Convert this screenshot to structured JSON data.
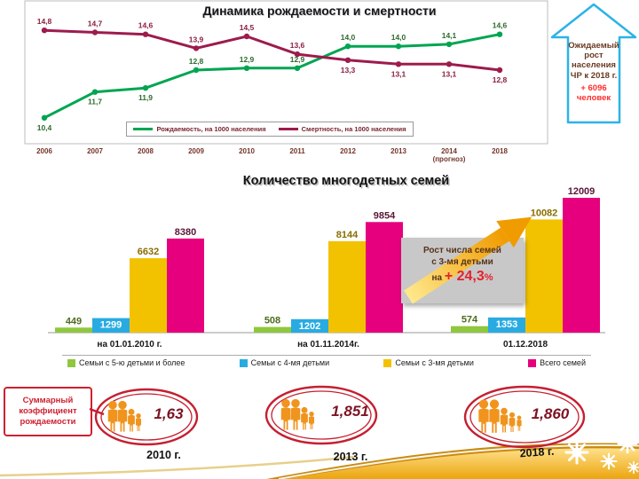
{
  "chart_data": [
    {
      "type": "line",
      "title": "Динамика рождаемости и смертности",
      "x_labels": [
        "2006",
        "2007",
        "2008",
        "2009",
        "2010",
        "2011",
        "2012",
        "2013",
        "2014",
        "2018"
      ],
      "x_sublabels": [
        "",
        "",
        "",
        "",
        "",
        "",
        "",
        "",
        "(прогноз)",
        ""
      ],
      "ylim": [
        10,
        15.5
      ],
      "legend_position": "bottom",
      "series": [
        {
          "name": "Рождаемость, на 1000 населения",
          "color": "#00a551",
          "label_color": "#2e6b2e",
          "values": [
            10.4,
            11.7,
            11.9,
            12.8,
            12.9,
            12.9,
            14.0,
            14.0,
            14.1,
            14.6
          ],
          "labels": [
            "10,4",
            "11,7",
            "11,9",
            "12,8",
            "12,9",
            "12,9",
            "14,0",
            "14,0",
            "14,1",
            "14,6"
          ]
        },
        {
          "name": "Смертность, на 1000 населения",
          "color": "#9d1b4d",
          "label_color": "#8b1f3f",
          "values": [
            14.8,
            14.7,
            14.6,
            13.9,
            14.5,
            13.6,
            13.3,
            13.1,
            13.1,
            12.8
          ],
          "labels": [
            "14,8",
            "14,7",
            "14,6",
            "13,9",
            "14,5",
            "13,6",
            "13,3",
            "13,1",
            "13,1",
            "12,8"
          ]
        }
      ]
    },
    {
      "type": "bar",
      "title": "Количество многодетных семей",
      "categories": [
        "на 01.01.2010 г.",
        "на 01.11.2014г.",
        "01.12.2018"
      ],
      "ylim": [
        0,
        12009
      ],
      "legend_position": "bottom",
      "series": [
        {
          "name": "Семьи с 5-ю детьми и более",
          "color": "#8fc73e",
          "label_color": "#4f6b1d",
          "values": [
            449,
            508,
            574
          ]
        },
        {
          "name": "Семьи с 4-мя детьми",
          "color": "#29abe2",
          "label_color": "#ffffff",
          "values": [
            1299,
            1202,
            1353
          ]
        },
        {
          "name": "Семьи с 3-мя детьми",
          "color": "#f2c200",
          "label_color": "#8a6d00",
          "values": [
            6632,
            8144,
            10082
          ]
        },
        {
          "name": "Всего семей",
          "color": "#e6007d",
          "label_color": "#5a1738",
          "values": [
            8380,
            9854,
            12009
          ]
        }
      ]
    }
  ],
  "callout": {
    "text": "Ожидаемый рост населения ЧР к 2018 г.",
    "highlight": "+ 6096 человек",
    "border_color": "#2bb3e8"
  },
  "annotation": {
    "line1": "Рост числа семей",
    "line2": "с 3-мя детьми",
    "prefix": "на ",
    "value": "+ 24,3",
    "suffix": "%"
  },
  "fertility": {
    "label": "Суммарный коэффициент рождаемости",
    "items": [
      {
        "value": "1,63",
        "year": "2010 г."
      },
      {
        "value": "1,851",
        "year": "2013 г."
      },
      {
        "value": "1,860",
        "year": "2018 г."
      }
    ]
  }
}
